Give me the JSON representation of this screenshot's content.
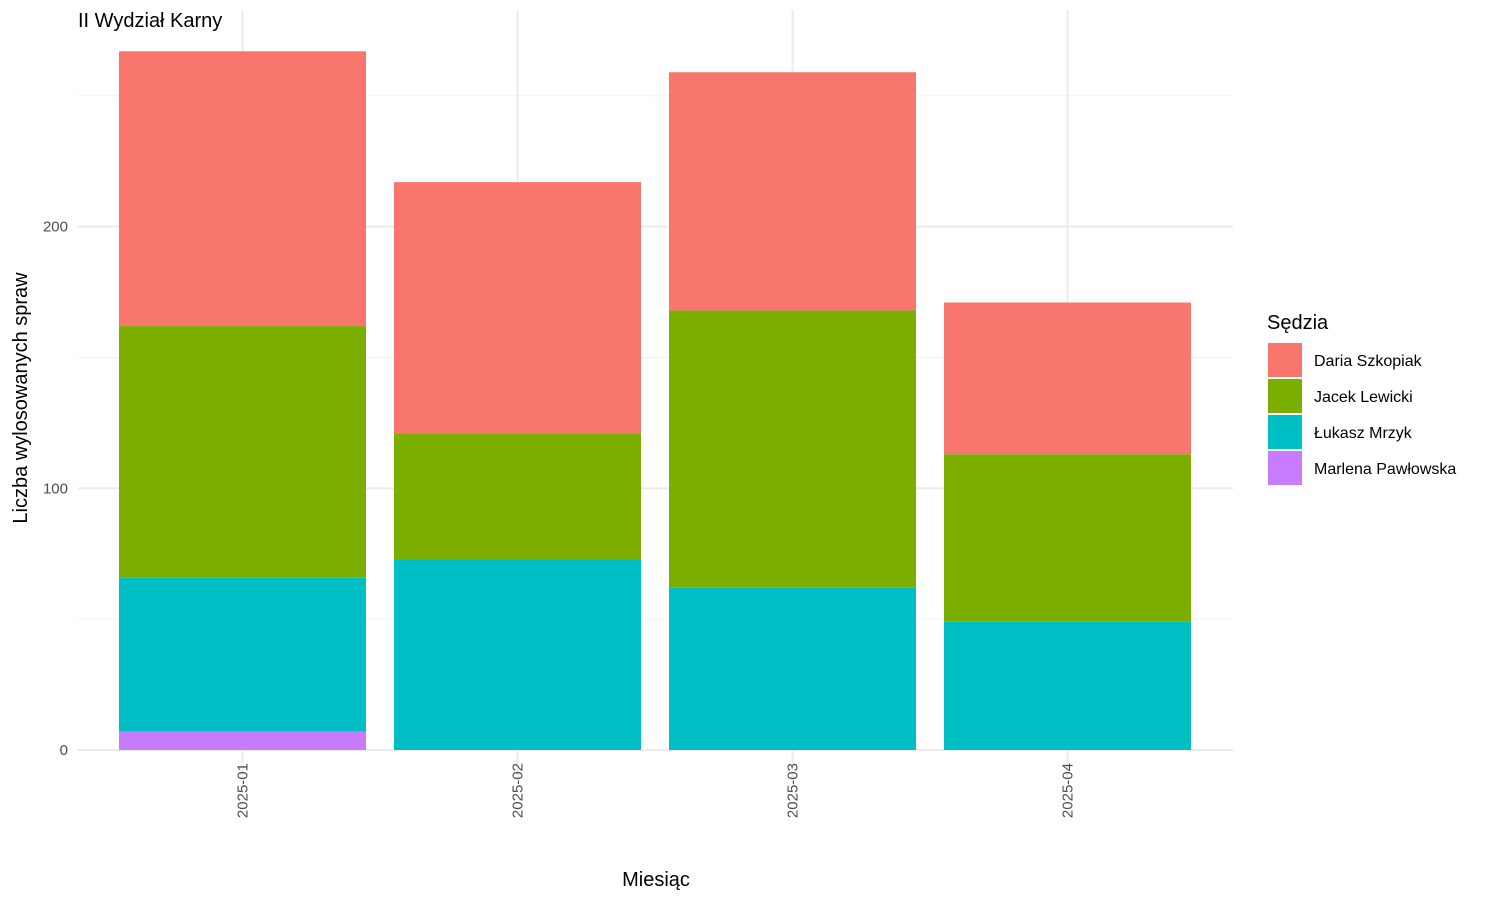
{
  "chart_data": {
    "type": "bar",
    "stacked": true,
    "title": "II Wydział Karny",
    "xlabel": "Miesiąc",
    "ylabel": "Liczba wylosowanych spraw",
    "categories": [
      "2025-01",
      "2025-02",
      "2025-03",
      "2025-04"
    ],
    "ylim": [
      0,
      267
    ],
    "yticks": [
      0,
      100,
      200
    ],
    "grid": true,
    "legend": {
      "title": "Sędzia",
      "placement": "right"
    },
    "series": [
      {
        "name": "Daria Szkopiak",
        "color": "#F8766D",
        "values": [
          105,
          96,
          91,
          58
        ]
      },
      {
        "name": "Jacek Lewicki",
        "color": "#7CAE00",
        "values": [
          96,
          48,
          106,
          64
        ]
      },
      {
        "name": "Łukasz Mrzyk",
        "color": "#00BFC4",
        "values": [
          59,
          73,
          62,
          49
        ]
      },
      {
        "name": "Marlena Pawłowska",
        "color": "#C77CFF",
        "values": [
          7,
          0,
          0,
          0
        ]
      }
    ]
  }
}
